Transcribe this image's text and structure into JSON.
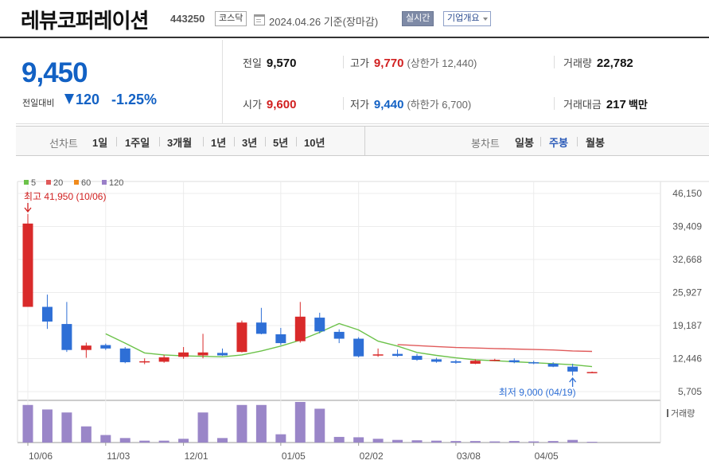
{
  "header": {
    "company_name": "레뷰코퍼레이션",
    "code": "443250",
    "market": "코스닥",
    "date": "2024.04.26",
    "date_basis": "기준(장마감)",
    "realtime_label": "실시간",
    "overview_label": "기업개요"
  },
  "quote": {
    "price": "9,450",
    "change_label": "전일대비",
    "change_amount": "120",
    "change_percent": "-1.25%",
    "prev_close_label": "전일",
    "prev_close": "9,570",
    "high_label": "고가",
    "high": "9,770",
    "upper_limit_label": "(상한가 12,440)",
    "volume_label": "거래량",
    "volume": "22,782",
    "open_label": "시가",
    "open": "9,600",
    "low_label": "저가",
    "low": "9,440",
    "lower_limit_label": "(하한가 6,700)",
    "turnover_label": "거래대금",
    "turnover": "217",
    "turnover_unit": "백만"
  },
  "range_bar": {
    "chart_type_label": "선차트",
    "ranges": [
      "1일",
      "1주일",
      "3개월",
      "1년",
      "3년",
      "5년",
      "10년"
    ],
    "candle_label": "봉차트",
    "candle_types": [
      "일봉",
      "주봉",
      "월봉"
    ],
    "active_candle": "주봉"
  },
  "colors": {
    "up": "#d92a2a",
    "down": "#2e6fd6",
    "ma5": "#6cc24a",
    "ma20": "#e05a5a",
    "ma60": "#f08a1c",
    "ma120": "#9a7fc8",
    "volume": "#9a86c8",
    "price_blue": "#1261c4"
  },
  "chart_data": {
    "type": "candlestick",
    "legend": [
      {
        "name": "5",
        "color": "#6cc24a"
      },
      {
        "name": "20",
        "color": "#e05a5a"
      },
      {
        "name": "60",
        "color": "#f08a1c"
      },
      {
        "name": "120",
        "color": "#9a7fc8"
      }
    ],
    "y_ticks": [
      "46,150",
      "39,409",
      "32,668",
      "25,927",
      "19,187",
      "12,446",
      "5,705"
    ],
    "ylim": [
      5705,
      46150
    ],
    "x_ticks": [
      "10/06",
      "11/03",
      "12/01",
      "01/05",
      "02/02",
      "03/08",
      "04/05"
    ],
    "x_tick_index": [
      0,
      4,
      8,
      13,
      17,
      22,
      26
    ],
    "high_annotation": "최고 41,950 (10/06)",
    "low_annotation": "최저 9,000 (04/19)",
    "volume_label": "거래량",
    "candles": [
      {
        "o": 23000,
        "h": 41950,
        "l": 23000,
        "c": 40000,
        "v": 100
      },
      {
        "o": 23000,
        "h": 25500,
        "l": 18500,
        "c": 20000,
        "v": 88
      },
      {
        "o": 19500,
        "h": 24000,
        "l": 13800,
        "c": 14200,
        "v": 80
      },
      {
        "o": 14200,
        "h": 15700,
        "l": 12600,
        "c": 15100,
        "v": 43
      },
      {
        "o": 15200,
        "h": 15500,
        "l": 14200,
        "c": 14500,
        "v": 20
      },
      {
        "o": 14500,
        "h": 14800,
        "l": 11500,
        "c": 11700,
        "v": 12
      },
      {
        "o": 11800,
        "h": 12500,
        "l": 11300,
        "c": 11900,
        "v": 5
      },
      {
        "o": 11800,
        "h": 13200,
        "l": 11600,
        "c": 12700,
        "v": 5
      },
      {
        "o": 12800,
        "h": 14800,
        "l": 12400,
        "c": 13700,
        "v": 10
      },
      {
        "o": 13100,
        "h": 17500,
        "l": 12500,
        "c": 13700,
        "v": 80
      },
      {
        "o": 13600,
        "h": 14500,
        "l": 13000,
        "c": 13100,
        "v": 12
      },
      {
        "o": 13800,
        "h": 20200,
        "l": 13700,
        "c": 19800,
        "v": 100
      },
      {
        "o": 19800,
        "h": 22800,
        "l": 17400,
        "c": 17500,
        "v": 100
      },
      {
        "o": 17400,
        "h": 18700,
        "l": 15200,
        "c": 15600,
        "v": 22
      },
      {
        "o": 16000,
        "h": 24000,
        "l": 15700,
        "c": 21000,
        "v": 108
      },
      {
        "o": 20800,
        "h": 21800,
        "l": 17600,
        "c": 18000,
        "v": 90
      },
      {
        "o": 17900,
        "h": 18400,
        "l": 15600,
        "c": 16500,
        "v": 15
      },
      {
        "o": 16500,
        "h": 16800,
        "l": 12700,
        "c": 12900,
        "v": 14
      },
      {
        "o": 13100,
        "h": 14500,
        "l": 12800,
        "c": 13300,
        "v": 10
      },
      {
        "o": 13400,
        "h": 14300,
        "l": 12800,
        "c": 13000,
        "v": 7
      },
      {
        "o": 13000,
        "h": 13400,
        "l": 12000,
        "c": 12200,
        "v": 6
      },
      {
        "o": 12300,
        "h": 12600,
        "l": 11600,
        "c": 11800,
        "v": 5
      },
      {
        "o": 11900,
        "h": 12200,
        "l": 11400,
        "c": 11600,
        "v": 4
      },
      {
        "o": 11400,
        "h": 12300,
        "l": 11300,
        "c": 12000,
        "v": 4
      },
      {
        "o": 12100,
        "h": 12400,
        "l": 11900,
        "c": 12200,
        "v": 3
      },
      {
        "o": 12100,
        "h": 12500,
        "l": 11500,
        "c": 11700,
        "v": 4
      },
      {
        "o": 11700,
        "h": 12000,
        "l": 11300,
        "c": 11500,
        "v": 3
      },
      {
        "o": 11400,
        "h": 11700,
        "l": 10700,
        "c": 10800,
        "v": 4
      },
      {
        "o": 10800,
        "h": 11400,
        "l": 9000,
        "c": 9800,
        "v": 7
      },
      {
        "o": 9600,
        "h": 9800,
        "l": 9500,
        "c": 9700,
        "v": 2
      }
    ],
    "ma5": [
      null,
      null,
      null,
      null,
      17500,
      15600,
      13600,
      13200,
      13000,
      12900,
      12800,
      13200,
      14000,
      15000,
      16200,
      17800,
      19600,
      18300,
      16000,
      15000,
      13700,
      13100,
      12600,
      12200,
      12000,
      11800,
      11600,
      11400,
      11200,
      10800
    ],
    "ma20": [
      null,
      null,
      null,
      null,
      null,
      null,
      null,
      null,
      null,
      null,
      null,
      null,
      null,
      null,
      null,
      null,
      null,
      null,
      null,
      15300,
      15100,
      14900,
      14700,
      14600,
      14500,
      14400,
      14300,
      14200,
      14000,
      13900
    ]
  }
}
